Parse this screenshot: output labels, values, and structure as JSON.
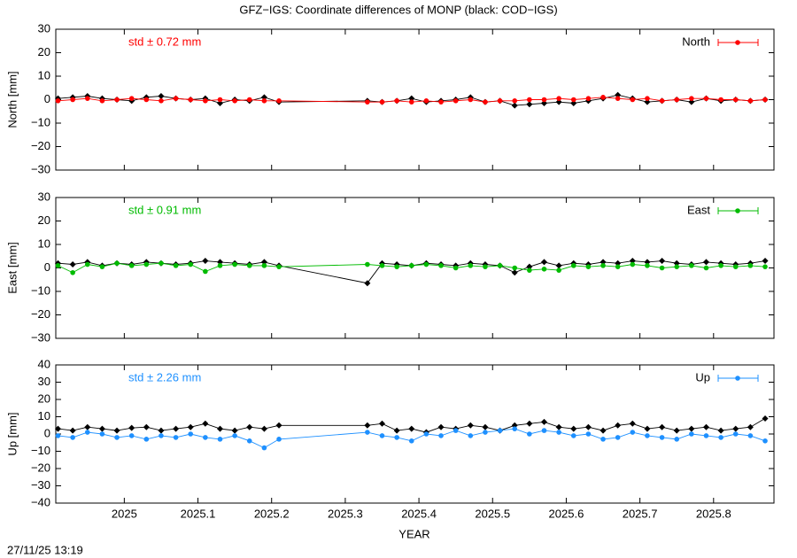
{
  "figure": {
    "title": "GFZ−IGS: Coordinate differences of MONP (black: COD−IGS)",
    "xlabel": "YEAR",
    "timestamp": "27/11/25 13:19"
  },
  "chart_data": [
    {
      "type": "line",
      "annotation": "std ± 0.72 mm",
      "ylabel": "North [mm]",
      "show_xtick_labels": false,
      "x": [
        2024.91,
        2024.93,
        2024.95,
        2024.97,
        2024.99,
        2025.01,
        2025.03,
        2025.05,
        2025.07,
        2025.09,
        2025.11,
        2025.13,
        2025.15,
        2025.17,
        2025.19,
        2025.21,
        2025.33,
        2025.35,
        2025.37,
        2025.39,
        2025.41,
        2025.43,
        2025.45,
        2025.47,
        2025.49,
        2025.51,
        2025.53,
        2025.55,
        2025.57,
        2025.59,
        2025.61,
        2025.63,
        2025.65,
        2025.67,
        2025.69,
        2025.71,
        2025.73,
        2025.75,
        2025.77,
        2025.79,
        2025.81,
        2025.83,
        2025.85,
        2025.87
      ],
      "xlim": [
        2024.907,
        2025.882
      ],
      "xticks": [
        2025,
        2025.1,
        2025.2,
        2025.3,
        2025.4,
        2025.5,
        2025.6,
        2025.7,
        2025.8
      ],
      "ylim": [
        -30,
        30
      ],
      "yticks": [
        {
          "value": -30,
          "label": "−30"
        },
        {
          "value": -20,
          "label": "−20"
        },
        {
          "value": -10,
          "label": "−10"
        },
        0,
        10,
        20,
        30
      ],
      "series": [
        {
          "color": "#000000",
          "marker": "diamond",
          "values": [
            0.5,
            1,
            1.5,
            0.5,
            0,
            -0.5,
            1,
            1.5,
            0.5,
            0,
            0.5,
            -1.5,
            0,
            -0.5,
            1,
            -1,
            -0.5,
            -1,
            -0.5,
            0.5,
            -1,
            -0.5,
            0,
            1,
            -1,
            -0.5,
            -2.5,
            -2,
            -1.5,
            -1,
            -1.5,
            -0.5,
            0.5,
            2,
            0.5,
            -1,
            -0.5,
            0,
            -1,
            0.5,
            -0.5,
            0,
            -0.5,
            0
          ]
        },
        {
          "name": "North",
          "color": "#ff0000",
          "marker": "circle",
          "values": [
            -0.5,
            0,
            0.5,
            -0.5,
            0,
            0.5,
            0,
            -0.5,
            0.5,
            0,
            -0.5,
            0,
            -0.5,
            0,
            -0.5,
            -0.5,
            -1,
            -1,
            -0.5,
            -1,
            -0.5,
            -1,
            -0.5,
            0,
            -1,
            -0.5,
            -0.5,
            0,
            0,
            0.5,
            0,
            0.5,
            1,
            0.5,
            0,
            0.5,
            -0.5,
            0,
            0.5,
            0.5,
            0,
            0,
            -0.5,
            0
          ]
        }
      ]
    },
    {
      "type": "line",
      "annotation": "std ± 0.91 mm",
      "ylabel": "East [mm]",
      "show_xtick_labels": false,
      "x": [
        2024.91,
        2024.93,
        2024.95,
        2024.97,
        2024.99,
        2025.01,
        2025.03,
        2025.05,
        2025.07,
        2025.09,
        2025.11,
        2025.13,
        2025.15,
        2025.17,
        2025.19,
        2025.21,
        2025.33,
        2025.35,
        2025.37,
        2025.39,
        2025.41,
        2025.43,
        2025.45,
        2025.47,
        2025.49,
        2025.51,
        2025.53,
        2025.55,
        2025.57,
        2025.59,
        2025.61,
        2025.63,
        2025.65,
        2025.67,
        2025.69,
        2025.71,
        2025.73,
        2025.75,
        2025.77,
        2025.79,
        2025.81,
        2025.83,
        2025.85,
        2025.87
      ],
      "xlim": [
        2024.907,
        2025.882
      ],
      "xticks": [
        2025,
        2025.1,
        2025.2,
        2025.3,
        2025.4,
        2025.5,
        2025.6,
        2025.7,
        2025.8
      ],
      "ylim": [
        -30,
        30
      ],
      "yticks": [
        {
          "value": -30,
          "label": "−30"
        },
        {
          "value": -20,
          "label": "−20"
        },
        {
          "value": -10,
          "label": "−10"
        },
        0,
        10,
        20,
        30
      ],
      "series": [
        {
          "color": "#000000",
          "marker": "diamond",
          "values": [
            2,
            1.5,
            2.5,
            1,
            2,
            1.5,
            2.5,
            2,
            1.5,
            2,
            3,
            2.5,
            2,
            1.5,
            2.5,
            1,
            -6.5,
            2,
            1.5,
            1,
            2,
            1.5,
            1,
            2,
            1.5,
            1,
            -2,
            0.5,
            2.5,
            1,
            2,
            1.5,
            2.5,
            2,
            3,
            2.5,
            3,
            2,
            1.5,
            2.5,
            2,
            1.5,
            2,
            3
          ]
        },
        {
          "name": "East",
          "color": "#00bb00",
          "marker": "circle",
          "values": [
            1,
            -2,
            1.5,
            0.5,
            2,
            1,
            1.5,
            2,
            1,
            1.5,
            -1.5,
            1,
            1.5,
            1,
            1,
            0.5,
            1.5,
            1,
            0.5,
            1,
            1.5,
            1,
            0,
            1,
            0.5,
            1,
            0,
            -1,
            -0.5,
            -1,
            1,
            0.5,
            1,
            0.5,
            1.5,
            1,
            0,
            0.5,
            1,
            0,
            1,
            0.5,
            1,
            0.5
          ]
        }
      ]
    },
    {
      "type": "line",
      "annotation": "std ± 2.26 mm",
      "ylabel": "Up [mm]",
      "show_xtick_labels": true,
      "x": [
        2024.91,
        2024.93,
        2024.95,
        2024.97,
        2024.99,
        2025.01,
        2025.03,
        2025.05,
        2025.07,
        2025.09,
        2025.11,
        2025.13,
        2025.15,
        2025.17,
        2025.19,
        2025.21,
        2025.33,
        2025.35,
        2025.37,
        2025.39,
        2025.41,
        2025.43,
        2025.45,
        2025.47,
        2025.49,
        2025.51,
        2025.53,
        2025.55,
        2025.57,
        2025.59,
        2025.61,
        2025.63,
        2025.65,
        2025.67,
        2025.69,
        2025.71,
        2025.73,
        2025.75,
        2025.77,
        2025.79,
        2025.81,
        2025.83,
        2025.85,
        2025.87
      ],
      "xlim": [
        2024.907,
        2025.882
      ],
      "xticks": [
        2025,
        2025.1,
        2025.2,
        2025.3,
        2025.4,
        2025.5,
        2025.6,
        2025.7,
        2025.8
      ],
      "ylim": [
        -40,
        40
      ],
      "yticks": [
        {
          "value": -40,
          "label": "−40"
        },
        {
          "value": -30,
          "label": "−30"
        },
        {
          "value": -20,
          "label": "−20"
        },
        {
          "value": -10,
          "label": "−10"
        },
        0,
        10,
        20,
        30,
        40
      ],
      "series": [
        {
          "color": "#000000",
          "marker": "diamond",
          "values": [
            3,
            2,
            4,
            3,
            2,
            3.5,
            4,
            2,
            3,
            4,
            6,
            3,
            2,
            4,
            3,
            5,
            5,
            6,
            2,
            3,
            1,
            4,
            3,
            5,
            4,
            2,
            5,
            6,
            7,
            4,
            3,
            4,
            2,
            5,
            6,
            3,
            4,
            2,
            3,
            4,
            2,
            3,
            4,
            9
          ]
        },
        {
          "name": "Up",
          "color": "#1e90ff",
          "marker": "circle",
          "values": [
            -1,
            -2,
            1,
            0,
            -2,
            -1,
            -3,
            -1,
            -2,
            0,
            -2,
            -3,
            -1,
            -4,
            -8,
            -3,
            1,
            -1,
            -2,
            -4,
            0,
            -1,
            2,
            -1,
            1,
            2,
            3,
            0,
            2,
            1,
            -1,
            0,
            -3,
            -2,
            1,
            -1,
            -2,
            -3,
            0,
            -1,
            -2,
            0,
            -1,
            -4
          ]
        }
      ]
    }
  ]
}
